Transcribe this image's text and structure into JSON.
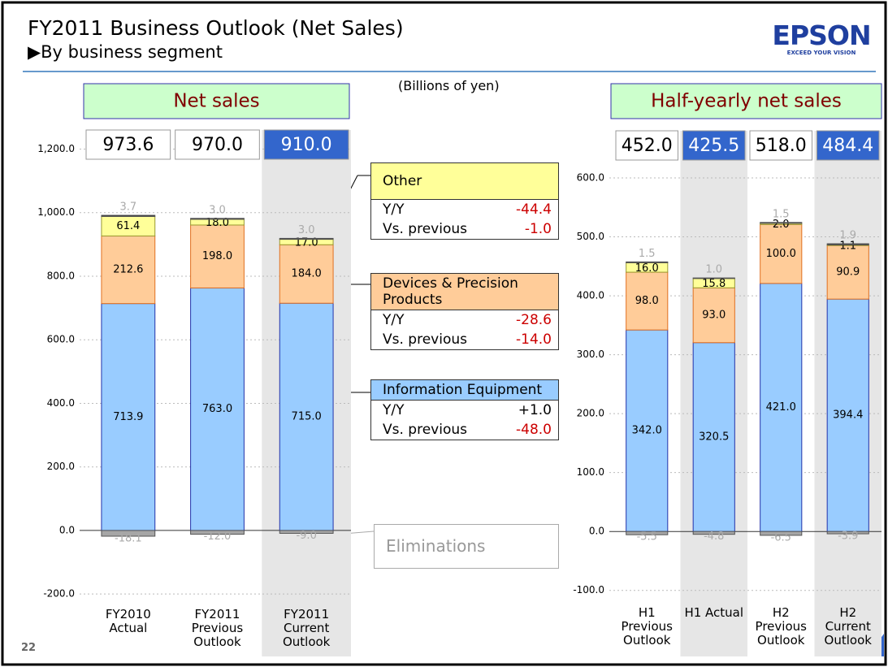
{
  "title": "FY2011 Business Outlook (Net Sales)",
  "subtitle": "▶By business segment",
  "unit_note": "(Billions of yen)",
  "logo": {
    "name": "EPSON",
    "tagline": "EXCEED YOUR VISION"
  },
  "page_number": "22",
  "eliminations_label": "Eliminations",
  "callouts": [
    {
      "title": "Other",
      "color": "#ffff99",
      "rows": [
        {
          "label": "Y/Y",
          "value": "-44.4"
        },
        {
          "label": "Vs. previous",
          "value": "-1.0"
        }
      ]
    },
    {
      "title": "Devices & Precision Products",
      "color": "#ffcc99",
      "rows": [
        {
          "label": "Y/Y",
          "value": "-28.6"
        },
        {
          "label": "Vs. previous",
          "value": "-14.0"
        }
      ]
    },
    {
      "title": "Information Equipment",
      "color": "#99ccff",
      "rows": [
        {
          "label": "Y/Y",
          "value": "+1.0"
        },
        {
          "label": "Vs. previous",
          "value": "-48.0"
        }
      ]
    }
  ],
  "chart_data": [
    {
      "type": "bar",
      "stacked": true,
      "title": "Net sales",
      "categories": [
        "FY2010 Actual",
        "FY2011 Previous Outlook",
        "FY2011 Current Outlook"
      ],
      "highlighted": [
        false,
        false,
        true
      ],
      "totals": [
        973.6,
        970,
        910
      ],
      "total_labels": [
        "973.6",
        "970.0",
        "910.0"
      ],
      "series": [
        {
          "color": "#99ccff",
          "values": [
            713.9,
            763,
            715
          ],
          "value_labels": [
            "713.9",
            "763.0",
            "715.0"
          ]
        },
        {
          "color": "#ffcc99",
          "values": [
            212.6,
            198,
            184
          ],
          "value_labels": [
            "212.6",
            "198.0",
            "184.0"
          ]
        },
        {
          "color": "#ffff99",
          "values": [
            61.4,
            18,
            17
          ],
          "value_labels": [
            "61.4",
            "18.0",
            "17.0"
          ]
        },
        {
          "color": "#333333",
          "values": [
            3.7,
            3,
            3
          ],
          "value_labels": [
            "3.7",
            "3.0",
            "3.0"
          ]
        },
        {
          "color": "#a6a6a6",
          "values": [
            -18.1,
            -12,
            -9
          ],
          "value_labels": [
            "-18.1",
            "-12.0",
            "-9.0"
          ]
        }
      ],
      "ylim": [
        -220,
        1260
      ],
      "yticks": [
        {
          "value": -200,
          "label": "-200.0"
        },
        {
          "value": 0,
          "label": "0.0"
        },
        {
          "value": 200,
          "label": "200.0"
        },
        {
          "value": 400,
          "label": "400.0"
        },
        {
          "value": 600,
          "label": "600.0"
        },
        {
          "value": 800,
          "label": "800.0"
        },
        {
          "value": 1000,
          "label": "1,000.0"
        },
        {
          "value": 1200,
          "label": "1,200.0"
        }
      ],
      "grid": true
    },
    {
      "type": "bar",
      "stacked": true,
      "title": "Half-yearly net sales",
      "categories": [
        "H1 Previous Outlook",
        "H1 Actual",
        "H2 Previous Outlook",
        "H2 Current Outlook"
      ],
      "highlighted": [
        false,
        true,
        false,
        true
      ],
      "totals": [
        452,
        425.5,
        518,
        484.4
      ],
      "total_labels": [
        "452.0",
        "425.5",
        "518.0",
        "484.4"
      ],
      "series": [
        {
          "color": "#99ccff",
          "values": [
            342,
            320.5,
            421,
            394.4
          ],
          "value_labels": [
            "342.0",
            "320.5",
            "421.0",
            "394.4"
          ]
        },
        {
          "color": "#ffcc99",
          "values": [
            98,
            93,
            100,
            90.9
          ],
          "value_labels": [
            "98.0",
            "93.0",
            "100.0",
            "90.9"
          ]
        },
        {
          "color": "#ffff99",
          "values": [
            16,
            15.8,
            2,
            1.1
          ],
          "value_labels": [
            "16.0",
            "15.8",
            "2.0",
            "1.1"
          ]
        },
        {
          "color": "#333333",
          "values": [
            1.5,
            1,
            1.5,
            1.9
          ],
          "value_labels": [
            "1.5",
            "1.0",
            "1.5",
            "1.9"
          ]
        },
        {
          "color": "#a6a6a6",
          "values": [
            -5.5,
            -4.8,
            -6.5,
            -3.9
          ],
          "value_labels": [
            "-5.5",
            "-4.8",
            "-6.5",
            "-3.9"
          ]
        }
      ],
      "ylim": [
        -110,
        640
      ],
      "yticks": [
        {
          "value": -100,
          "label": "-100.0"
        },
        {
          "value": 0,
          "label": "0.0"
        },
        {
          "value": 100,
          "label": "100.0"
        },
        {
          "value": 200,
          "label": "200.0"
        },
        {
          "value": 300,
          "label": "300.0"
        },
        {
          "value": 400,
          "label": "400.0"
        },
        {
          "value": 500,
          "label": "500.0"
        },
        {
          "value": 600,
          "label": "600.0"
        }
      ],
      "grid": true
    }
  ]
}
